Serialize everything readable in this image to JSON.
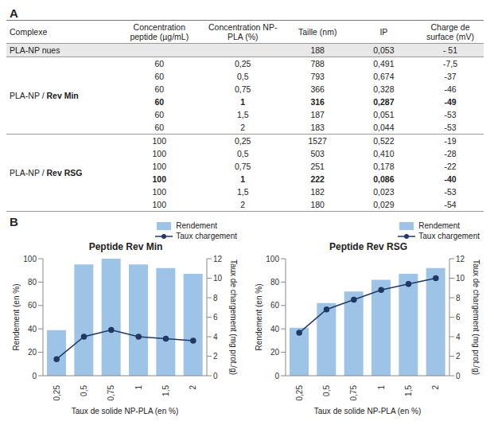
{
  "table_panel": {
    "label": "A",
    "columns": [
      {
        "key": "complex",
        "title": "Complexe"
      },
      {
        "key": "peptide",
        "title": "Concentration peptide (µg/mL)"
      },
      {
        "key": "np",
        "title": "Concentration NP-PLA (%)"
      },
      {
        "key": "taille",
        "title": "Taille (nm)"
      },
      {
        "key": "ip",
        "title": "IP"
      },
      {
        "key": "charge",
        "title": "Charge de surface (mV)"
      }
    ],
    "reference_row": {
      "complex": "PLA-NP nues",
      "taille": "188",
      "ip": "0,053",
      "charge": "- 51"
    },
    "groups": [
      {
        "label": [
          "PLA-NP / ",
          "Rev Min"
        ],
        "rows": [
          {
            "peptide": "60",
            "np": "0,25",
            "taille": "788",
            "ip": "0,491",
            "charge": "-7,5"
          },
          {
            "peptide": "60",
            "np": "0,5",
            "taille": "793",
            "ip": "0,674",
            "charge": "-37"
          },
          {
            "peptide": "60",
            "np": "0,75",
            "taille": "366",
            "ip": "0,328",
            "charge": "-46"
          },
          {
            "peptide": "60",
            "np": "1",
            "taille": "316",
            "ip": "0,287",
            "charge": "-49",
            "bold": true
          },
          {
            "peptide": "60",
            "np": "1,5",
            "taille": "187",
            "ip": "0,051",
            "charge": "-53"
          },
          {
            "peptide": "60",
            "np": "2",
            "taille": "183",
            "ip": "0,044",
            "charge": "-53"
          }
        ]
      },
      {
        "label": [
          "PLA-NP / ",
          "Rev RSG"
        ],
        "rows": [
          {
            "peptide": "100",
            "np": "0,25",
            "taille": "1527",
            "ip": "0,522",
            "charge": "-19"
          },
          {
            "peptide": "100",
            "np": "0,5",
            "taille": "503",
            "ip": "0,410",
            "charge": "-28"
          },
          {
            "peptide": "100",
            "np": "0,75",
            "taille": "251",
            "ip": "0,178",
            "charge": "-22"
          },
          {
            "peptide": "100",
            "np": "1",
            "taille": "222",
            "ip": "0,086",
            "charge": "-40",
            "bold": true
          },
          {
            "peptide": "100",
            "np": "1,5",
            "taille": "182",
            "ip": "0,023",
            "charge": "-53"
          },
          {
            "peptide": "100",
            "np": "2",
            "taille": "180",
            "ip": "0,029",
            "charge": "-54"
          }
        ]
      }
    ]
  },
  "charts_panel_label": "B",
  "chart_data": [
    {
      "type": "combo",
      "title": "Peptide Rev Min",
      "x_label": "Taux de solide NP-PLA (en %)",
      "y_label": "Rendement (en %)",
      "y2_label": "Taux de chargement (mg prot./g)",
      "categories": [
        "0,25",
        "0,5",
        "0,75",
        "1",
        "1,5",
        "2"
      ],
      "series": [
        {
          "name": "Rendement",
          "type": "bar",
          "color": "#9dc3e6",
          "values": [
            39,
            95,
            100,
            95,
            92,
            87
          ]
        },
        {
          "name": "Taux chargement",
          "type": "line",
          "axis": "y2",
          "color": "#1f3864",
          "marker": "circle",
          "values": [
            1.7,
            4.0,
            4.7,
            4.0,
            3.8,
            3.6
          ]
        }
      ],
      "ylim": [
        0,
        100
      ],
      "yticks": [
        0,
        20,
        40,
        60,
        80,
        100
      ],
      "y2lim": [
        0,
        12
      ],
      "y2ticks": [
        0,
        2,
        4,
        6,
        8,
        10,
        12
      ],
      "legend": "top-right",
      "grid": false
    },
    {
      "type": "combo",
      "title": "Peptide Rev RSG",
      "x_label": "Taux de solide NP-PLA (en %)",
      "y_label": "Rendement (en %)",
      "y2_label": "Taux de chargement (mg prot./g)",
      "categories": [
        "0,25",
        "0,5",
        "0,75",
        "1",
        "1,5",
        "2"
      ],
      "series": [
        {
          "name": "Rendement",
          "type": "bar",
          "color": "#9dc3e6",
          "values": [
            41,
            62,
            72,
            82,
            87,
            92
          ]
        },
        {
          "name": "Taux chargement",
          "type": "line",
          "axis": "y2",
          "color": "#1f3864",
          "marker": "circle",
          "values": [
            4.4,
            6.8,
            7.8,
            8.8,
            9.4,
            10.0
          ]
        }
      ],
      "ylim": [
        0,
        100
      ],
      "yticks": [
        0,
        20,
        40,
        60,
        80,
        100
      ],
      "y2lim": [
        0,
        12
      ],
      "y2ticks": [
        0,
        2,
        4,
        6,
        8,
        10,
        12
      ],
      "legend": "top-right",
      "grid": false
    }
  ]
}
